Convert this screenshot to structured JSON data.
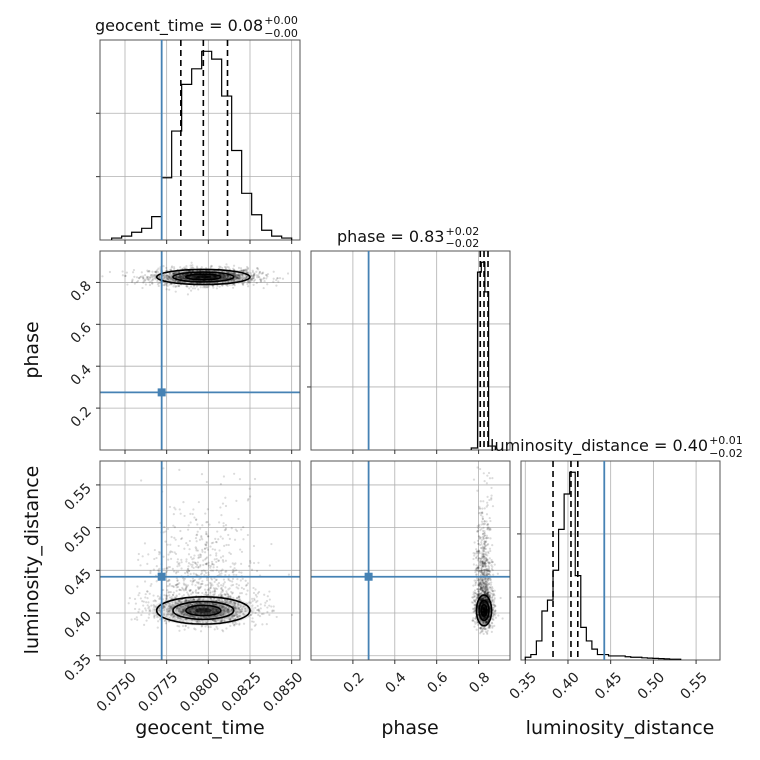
{
  "chart_data": {
    "type": "corner",
    "truth_color": "#4682b4",
    "parameters": [
      {
        "name": "geocent_time",
        "title": "geocent_time = 0.08",
        "title_plus": "+0.00",
        "title_minus": "−0.00",
        "xlim": [
          0.0735,
          0.0855
        ],
        "ticks": [
          0.075,
          0.0775,
          0.08,
          0.0825,
          0.085
        ],
        "tick_labels": [
          "0.0750",
          "0.0775",
          "0.0800",
          "0.0825",
          "0.0850"
        ],
        "truth": 0.0772,
        "quantiles": [
          0.07835,
          0.0797,
          0.08115
        ],
        "hist_edges": [
          0.0742,
          0.0748,
          0.0754,
          0.076,
          0.0766,
          0.0772,
          0.0778,
          0.0784,
          0.079,
          0.0796,
          0.0802,
          0.0808,
          0.0814,
          0.082,
          0.0826,
          0.0832,
          0.0838,
          0.0844,
          0.085
        ],
        "hist_counts": [
          1,
          2,
          4,
          6,
          12,
          32,
          56,
          80,
          88,
          97,
          93,
          74,
          46,
          24,
          13,
          5,
          2,
          1
        ]
      },
      {
        "name": "phase",
        "title": "phase = 0.83",
        "title_plus": "+0.02",
        "title_minus": "−0.02",
        "xlim": [
          0.0,
          0.95
        ],
        "ylim": [
          0.0,
          0.95
        ],
        "ticks": [
          0.2,
          0.4,
          0.6,
          0.8
        ],
        "tick_labels": [
          "0.2",
          "0.4",
          "0.6",
          "0.8"
        ],
        "truth": 0.275,
        "quantiles": [
          0.808,
          0.826,
          0.845
        ],
        "hist_edges": [
          0.765,
          0.795,
          0.813,
          0.83,
          0.848,
          0.88
        ],
        "hist_counts": [
          1,
          90,
          95,
          80,
          2
        ]
      },
      {
        "name": "luminosity_distance",
        "title": "luminosity_distance = 0.40",
        "title_plus": "+0.01",
        "title_minus": "−0.02",
        "xlim": [
          0.345,
          0.578
        ],
        "ylim": [
          0.345,
          0.578
        ],
        "ticks": [
          0.35,
          0.4,
          0.45,
          0.5,
          0.55
        ],
        "tick_labels": [
          "0.35",
          "0.40",
          "0.45",
          "0.50",
          "0.55"
        ],
        "truth": 0.4425,
        "quantiles": [
          0.3825,
          0.4035,
          0.4115
        ],
        "hist_edges": [
          0.35,
          0.3565,
          0.363,
          0.3695,
          0.376,
          0.3825,
          0.389,
          0.3955,
          0.402,
          0.4085,
          0.415,
          0.4215,
          0.428,
          0.4345,
          0.441,
          0.4475,
          0.454,
          0.4605,
          0.467,
          0.4735,
          0.48,
          0.4865,
          0.493,
          0.4995,
          0.506,
          0.5125,
          0.519,
          0.5255,
          0.532
        ],
        "hist_counts": [
          1,
          2,
          7,
          18,
          22,
          33,
          48,
          61,
          69,
          31,
          12,
          7,
          4,
          2,
          2,
          1.5,
          1.5,
          1.5,
          1.2,
          1,
          1,
          0.8,
          0.7,
          0.6,
          0.5,
          0.4,
          0.3,
          0.3
        ]
      }
    ]
  }
}
